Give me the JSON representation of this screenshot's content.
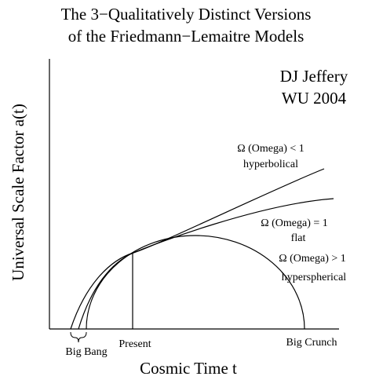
{
  "title": [
    "The 3−Qualitatively Distinct Versions",
    "of the Friedmann−Lemaitre Models"
  ],
  "credit": [
    "DJ Jeffery",
    "WU 2004"
  ],
  "curves": [
    {
      "label": "Ω (Omega) < 1",
      "kind": "hyperbolical"
    },
    {
      "label": "Ω (Omega) = 1",
      "kind": "flat"
    },
    {
      "label": "Ω (Omega) > 1",
      "kind": "hyperspherical"
    }
  ],
  "axes": {
    "y_label": "Universal Scale Factor a(t)",
    "x_label": "Cosmic Time t"
  },
  "markers": {
    "big_bang": "Big Bang",
    "present": "Present",
    "big_crunch": "Big Crunch"
  }
}
